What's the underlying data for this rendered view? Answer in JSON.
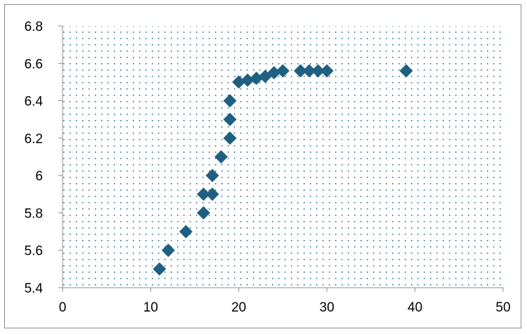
{
  "chart_data": {
    "type": "scatter",
    "title": "",
    "xlabel": "",
    "ylabel": "",
    "xlim": [
      0,
      50
    ],
    "ylim": [
      5.4,
      6.8
    ],
    "x_ticks": [
      0,
      10,
      20,
      30,
      40,
      50
    ],
    "y_ticks": [
      5.4,
      5.6,
      5.8,
      6.0,
      6.2,
      6.4,
      6.6,
      6.8
    ],
    "x_tick_labels": [
      "0",
      "10",
      "20",
      "30",
      "40",
      "50"
    ],
    "y_tick_labels": [
      "5.4",
      "5.6",
      "5.8",
      "6",
      "6.2",
      "6.4",
      "6.6",
      "6.8"
    ],
    "grid": "dotted",
    "legend": "none",
    "marker": "diamond",
    "marker_color": "#1f5f82",
    "series": [
      {
        "points": [
          {
            "x": 11,
            "y": 5.5
          },
          {
            "x": 12,
            "y": 5.6
          },
          {
            "x": 14,
            "y": 5.7
          },
          {
            "x": 16,
            "y": 5.8
          },
          {
            "x": 16,
            "y": 5.9
          },
          {
            "x": 17,
            "y": 5.9
          },
          {
            "x": 17,
            "y": 6.0
          },
          {
            "x": 18,
            "y": 6.1
          },
          {
            "x": 19,
            "y": 6.2
          },
          {
            "x": 19,
            "y": 6.3
          },
          {
            "x": 19,
            "y": 6.4
          },
          {
            "x": 20,
            "y": 6.5
          },
          {
            "x": 21,
            "y": 6.51
          },
          {
            "x": 22,
            "y": 6.52
          },
          {
            "x": 23,
            "y": 6.53
          },
          {
            "x": 24,
            "y": 6.55
          },
          {
            "x": 25,
            "y": 6.56
          },
          {
            "x": 27,
            "y": 6.56
          },
          {
            "x": 28,
            "y": 6.56
          },
          {
            "x": 29,
            "y": 6.56
          },
          {
            "x": 30,
            "y": 6.56
          },
          {
            "x": 39,
            "y": 6.56
          }
        ]
      }
    ]
  }
}
